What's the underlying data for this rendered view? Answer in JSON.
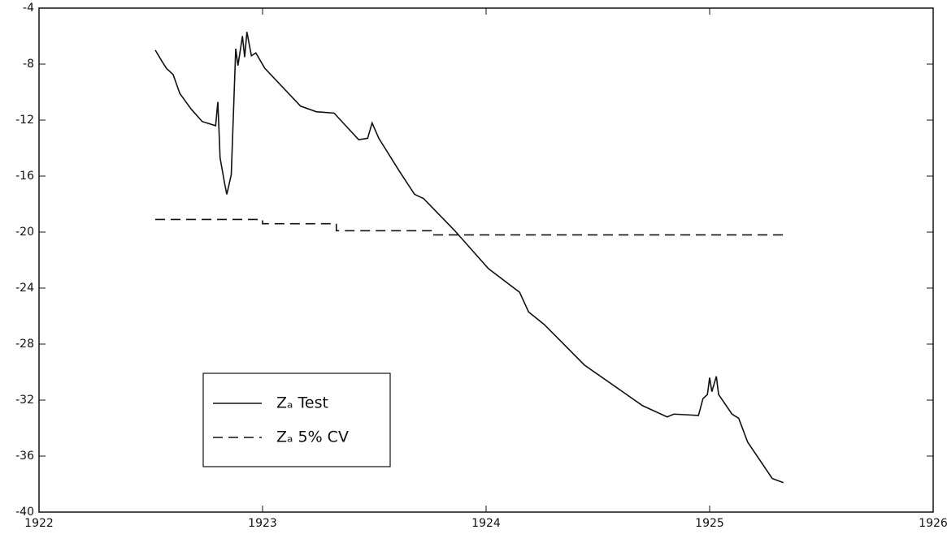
{
  "chart_data": {
    "type": "line",
    "xlim": [
      1922,
      1926
    ],
    "xticks": [
      1922,
      1923,
      1924,
      1925,
      1926
    ],
    "ylim": [
      -40,
      -4
    ],
    "yticks": [
      -40,
      -36,
      -32,
      -28,
      -24,
      -20,
      -16,
      -12,
      -8,
      -4
    ],
    "grid": false,
    "legend": "lower left",
    "series": [
      {
        "name": "Zₐ Test",
        "color": "#111111",
        "dash": "solid",
        "x": [
          1922.52,
          1922.55,
          1922.57,
          1922.6,
          1922.63,
          1922.68,
          1922.73,
          1922.79,
          1922.8,
          1922.81,
          1922.83,
          1922.84,
          1922.86,
          1922.88,
          1922.89,
          1922.91,
          1922.92,
          1922.93,
          1922.95,
          1922.97,
          1923.01,
          1923.17,
          1923.24,
          1923.32,
          1923.43,
          1923.47,
          1923.49,
          1923.52,
          1923.61,
          1923.68,
          1923.72,
          1923.86,
          1924.01,
          1924.15,
          1924.19,
          1924.26,
          1924.44,
          1924.7,
          1924.81,
          1924.84,
          1924.95,
          1924.97,
          1924.99,
          1925.0,
          1925.01,
          1925.03,
          1925.04,
          1925.1,
          1925.13,
          1925.17,
          1925.28,
          1925.33
        ],
        "values": [
          -7.0,
          -7.8,
          -8.3,
          -8.75,
          -10.1,
          -11.2,
          -12.1,
          -12.4,
          -10.7,
          -14.7,
          -16.5,
          -17.3,
          -15.9,
          -6.9,
          -8.1,
          -6.0,
          -7.5,
          -5.7,
          -7.4,
          -7.2,
          -8.3,
          -11.0,
          -11.4,
          -11.5,
          -13.4,
          -13.3,
          -12.2,
          -13.3,
          -15.6,
          -17.3,
          -17.6,
          -19.9,
          -22.6,
          -24.3,
          -25.7,
          -26.6,
          -29.5,
          -32.4,
          -33.2,
          -33.0,
          -33.1,
          -31.9,
          -31.6,
          -30.4,
          -31.4,
          -30.3,
          -31.6,
          -33.0,
          -33.3,
          -35.0,
          -37.6,
          -37.9
        ]
      },
      {
        "name": "Zₐ 5% CV",
        "color": "#111111",
        "dash": "dashed",
        "x": [
          1922.52,
          1923.0,
          1923.0,
          1923.33,
          1923.33,
          1923.76,
          1923.76,
          1925.33
        ],
        "values": [
          -19.1,
          -19.1,
          -19.4,
          -19.4,
          -19.9,
          -19.9,
          -20.2,
          -20.2
        ]
      }
    ]
  }
}
